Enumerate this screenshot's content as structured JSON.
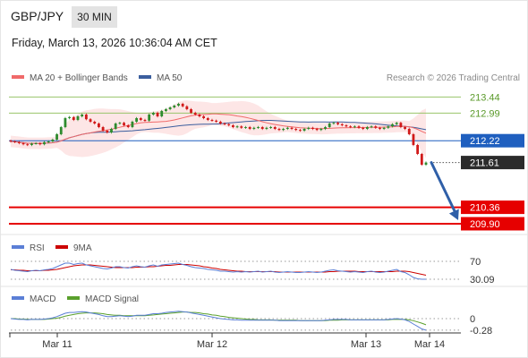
{
  "header": {
    "pair": "GBP/JPY",
    "timeframe": "30 MIN",
    "datetime": "Friday, March 13, 2026 10:36:04 AM CET",
    "credit": "Research © 2026 Trading Central"
  },
  "colors": {
    "ma20": "#f06a6a",
    "ma50": "#3b5e9e",
    "bollinger_fill": "#fde2e2",
    "resistance": "#98c46a",
    "pivot": "#1f5fbf",
    "support": "#e60000",
    "last_price": "#2b2b2b",
    "candle_up": "#2e8b2e",
    "candle_down": "#d11a1a",
    "rsi": "#5b7fd6",
    "rsi_ma": "#cc0000",
    "macd": "#5b7fd6",
    "macd_signal": "#5aa02c",
    "forecast_arrow": "#2f5fa8"
  },
  "chart_data": [
    {
      "type": "candlestick",
      "title": "GBP/JPY",
      "legend": [
        "MA 20 + Bollinger Bands",
        "MA 50"
      ],
      "x_ticks": [
        "Mar 11",
        "Mar 12",
        "Mar 13",
        "Mar 14"
      ],
      "y_range": [
        209.7,
        213.7
      ],
      "levels": [
        {
          "label": "213.44",
          "value": 213.44,
          "kind": "resistance"
        },
        {
          "label": "212.99",
          "value": 212.99,
          "kind": "resistance"
        },
        {
          "label": "212.22",
          "value": 212.22,
          "kind": "pivot"
        },
        {
          "label": "211.61",
          "value": 211.61,
          "kind": "last"
        },
        {
          "label": "210.36",
          "value": 210.36,
          "kind": "support"
        },
        {
          "label": "209.90",
          "value": 209.9,
          "kind": "support"
        }
      ],
      "forecast": {
        "from": 211.61,
        "to": 210.0
      },
      "close": [
        212.2,
        212.18,
        212.15,
        212.12,
        212.1,
        212.14,
        212.15,
        212.12,
        212.18,
        212.2,
        212.25,
        212.4,
        212.6,
        212.85,
        212.88,
        212.8,
        212.9,
        212.95,
        212.82,
        212.75,
        212.7,
        212.6,
        212.5,
        212.45,
        212.55,
        212.7,
        212.72,
        212.65,
        212.6,
        212.75,
        212.85,
        212.8,
        212.78,
        212.95,
        213.0,
        212.9,
        213.05,
        213.1,
        213.15,
        213.2,
        213.25,
        213.18,
        213.1,
        213.0,
        212.95,
        212.9,
        212.85,
        212.8,
        212.78,
        212.75,
        212.7,
        212.68,
        212.65,
        212.6,
        212.62,
        212.58,
        212.6,
        212.55,
        212.58,
        212.6,
        212.55,
        212.58,
        212.6,
        212.55,
        212.52,
        212.55,
        212.58,
        212.55,
        212.52,
        212.5,
        212.55,
        212.58,
        212.55,
        212.52,
        212.55,
        212.6,
        212.7,
        212.72,
        212.68,
        212.65,
        212.62,
        212.6,
        212.62,
        212.58,
        212.55,
        212.6,
        212.62,
        212.58,
        212.55,
        212.58,
        212.62,
        212.68,
        212.72,
        212.6,
        212.55,
        212.4,
        212.1,
        211.85,
        211.55,
        211.61
      ]
    },
    {
      "type": "line",
      "title": "RSI",
      "legend": [
        "RSI",
        "9MA"
      ],
      "levels": [
        {
          "label": "70",
          "value": 70
        },
        {
          "label": "30.09",
          "value": 30.09
        }
      ],
      "rsi": [
        52,
        50,
        49,
        48,
        47,
        49,
        50,
        49,
        51,
        52,
        54,
        58,
        62,
        66,
        66,
        63,
        65,
        66,
        62,
        60,
        58,
        56,
        54,
        53,
        55,
        58,
        58,
        56,
        55,
        58,
        60,
        58,
        57,
        60,
        62,
        59,
        62,
        63,
        64,
        65,
        66,
        63,
        61,
        58,
        56,
        55,
        54,
        52,
        51,
        50,
        48,
        48,
        47,
        46,
        47,
        46,
        47,
        46,
        47,
        48,
        46,
        47,
        48,
        46,
        45,
        46,
        47,
        46,
        45,
        45,
        46,
        47,
        46,
        45,
        46,
        48,
        50,
        51,
        49,
        48,
        47,
        46,
        47,
        46,
        45,
        47,
        48,
        46,
        45,
        46,
        48,
        50,
        52,
        47,
        45,
        40,
        34,
        31,
        30,
        30.09
      ],
      "rsi_ma": [
        51,
        51,
        50,
        50,
        49,
        49,
        49,
        49,
        50,
        50,
        51,
        52,
        54,
        56,
        58,
        60,
        61,
        62,
        62,
        62,
        61,
        60,
        59,
        58,
        57,
        56,
        56,
        56,
        56,
        56,
        57,
        57,
        57,
        58,
        58,
        59,
        60,
        61,
        61,
        62,
        63,
        63,
        63,
        62,
        61,
        60,
        58,
        57,
        55,
        54,
        52,
        51,
        50,
        49,
        48,
        48,
        47,
        47,
        47,
        47,
        47,
        47,
        47,
        47,
        46,
        46,
        46,
        46,
        46,
        46,
        46,
        46,
        46,
        46,
        46,
        46,
        47,
        47,
        48,
        48,
        48,
        48,
        48,
        47,
        47,
        47,
        47,
        47,
        47,
        47,
        47,
        47,
        48,
        48,
        48,
        47,
        45,
        43,
        41,
        39
      ]
    },
    {
      "type": "line",
      "title": "MACD",
      "legend": [
        "MACD",
        "MACD Signal"
      ],
      "levels": [
        {
          "label": "0",
          "value": 0
        },
        {
          "label": "-0.28",
          "value": -0.28
        }
      ],
      "macd": [
        0,
        -0.01,
        -0.02,
        -0.02,
        -0.03,
        -0.02,
        -0.02,
        -0.02,
        -0.01,
        0,
        0.02,
        0.05,
        0.09,
        0.13,
        0.15,
        0.15,
        0.16,
        0.17,
        0.16,
        0.14,
        0.12,
        0.1,
        0.07,
        0.05,
        0.05,
        0.06,
        0.07,
        0.06,
        0.05,
        0.06,
        0.08,
        0.08,
        0.08,
        0.1,
        0.12,
        0.12,
        0.13,
        0.15,
        0.16,
        0.17,
        0.18,
        0.17,
        0.16,
        0.14,
        0.12,
        0.1,
        0.08,
        0.06,
        0.04,
        0.02,
        0,
        -0.01,
        -0.02,
        -0.03,
        -0.03,
        -0.04,
        -0.04,
        -0.04,
        -0.04,
        -0.04,
        -0.04,
        -0.04,
        -0.04,
        -0.04,
        -0.05,
        -0.05,
        -0.05,
        -0.05,
        -0.05,
        -0.05,
        -0.05,
        -0.05,
        -0.05,
        -0.05,
        -0.05,
        -0.04,
        -0.03,
        -0.02,
        -0.02,
        -0.02,
        -0.02,
        -0.03,
        -0.03,
        -0.03,
        -0.03,
        -0.03,
        -0.03,
        -0.03,
        -0.03,
        -0.03,
        -0.02,
        -0.01,
        0,
        -0.01,
        -0.03,
        -0.07,
        -0.13,
        -0.19,
        -0.25,
        -0.28
      ],
      "macd_signal": [
        0,
        0,
        -0.01,
        -0.01,
        -0.02,
        -0.02,
        -0.02,
        -0.02,
        -0.02,
        -0.01,
        0,
        0.01,
        0.03,
        0.06,
        0.08,
        0.1,
        0.12,
        0.13,
        0.14,
        0.14,
        0.14,
        0.13,
        0.12,
        0.1,
        0.09,
        0.08,
        0.08,
        0.07,
        0.07,
        0.07,
        0.07,
        0.07,
        0.07,
        0.08,
        0.09,
        0.1,
        0.11,
        0.12,
        0.13,
        0.14,
        0.15,
        0.16,
        0.16,
        0.15,
        0.15,
        0.14,
        0.12,
        0.11,
        0.09,
        0.08,
        0.06,
        0.05,
        0.03,
        0.02,
        0.01,
        0,
        -0.01,
        -0.02,
        -0.02,
        -0.03,
        -0.03,
        -0.03,
        -0.03,
        -0.04,
        -0.04,
        -0.04,
        -0.04,
        -0.04,
        -0.04,
        -0.05,
        -0.05,
        -0.05,
        -0.05,
        -0.05,
        -0.05,
        -0.05,
        -0.04,
        -0.04,
        -0.04,
        -0.03,
        -0.03,
        -0.03,
        -0.03,
        -0.03,
        -0.03,
        -0.03,
        -0.03,
        -0.03,
        -0.03,
        -0.03,
        -0.03,
        -0.02,
        -0.02,
        -0.02,
        -0.02,
        -0.03,
        -0.05,
        -0.08,
        -0.11,
        -0.15
      ]
    }
  ]
}
